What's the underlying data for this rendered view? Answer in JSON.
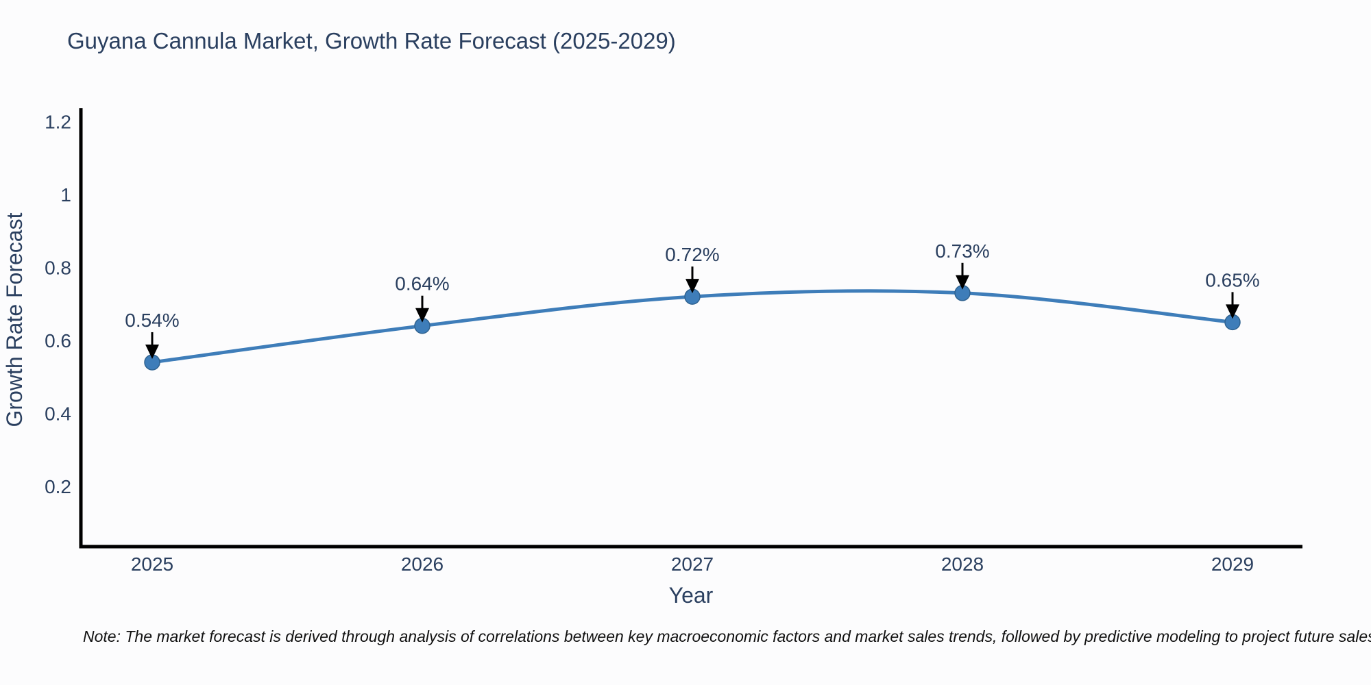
{
  "title": "Guyana Cannula Market, Growth Rate Forecast (2025-2029)",
  "note": "Note: The market forecast is derived through analysis of correlations between key macroeconomic factors and market sales trends, followed by predictive modeling to project future sales",
  "chart_data": {
    "type": "line",
    "line_shape": "spline",
    "title": "Guyana Cannula Market, Growth Rate Forecast (2025-2029)",
    "xlabel": "Year",
    "ylabel": "Growth Rate Forecast",
    "categories": [
      "2025",
      "2026",
      "2027",
      "2028",
      "2029"
    ],
    "series": [
      {
        "name": "Growth Rate Forecast",
        "values": [
          0.54,
          0.64,
          0.72,
          0.73,
          0.65
        ],
        "point_labels": [
          "0.54%",
          "0.64%",
          "0.72%",
          "0.73%",
          "0.65%"
        ]
      }
    ],
    "y_tick_values": [
      1.2,
      1.0,
      0.8,
      0.6,
      0.4,
      0.2
    ],
    "y_tick_labels": [
      "1.2",
      "1",
      "0.8",
      "0.6",
      "0.4",
      "0.2"
    ],
    "ylim": [
      0.025,
      1.23
    ],
    "grid": false,
    "legend_position": "none",
    "annotations_have_arrows": true,
    "colors": {
      "line": "#3e7db9",
      "marker_fill": "#3e7db9",
      "marker_edge": "#2f6290",
      "axis_line": "#000000",
      "chart_text": "#2a3f5f",
      "arrow": "#000000",
      "background": "#fcfcfd"
    }
  }
}
